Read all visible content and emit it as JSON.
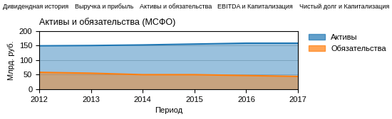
{
  "chart_data": {
    "type": "area",
    "title": "Активы и обязательства (МСФО)",
    "x_label": "Период",
    "y_label": "Млрд. руб.",
    "annotations": [
      "Дивидендная история",
      "Выручка и прибыль",
      "Активы и обязательства",
      "EBITDA и Капитализация",
      "Чистый долг и Капитализация"
    ],
    "x": [
      2012,
      2013,
      2014,
      2015,
      2016,
      2017
    ],
    "series": [
      {
        "name": "Активы",
        "values": [
          149,
          150,
          152,
          155,
          158,
          158
        ]
      },
      {
        "name": "Обязательства",
        "values": [
          58,
          55,
          50,
          50,
          47,
          44
        ]
      }
    ],
    "xlim": [
      2012,
      2017
    ],
    "xticks": [
      2012,
      2013,
      2014,
      2015,
      2016,
      2017
    ],
    "ylim": [
      0,
      200
    ],
    "yticks": [
      0,
      50,
      100,
      150,
      200
    ],
    "grid": true,
    "legend": "upper left"
  }
}
